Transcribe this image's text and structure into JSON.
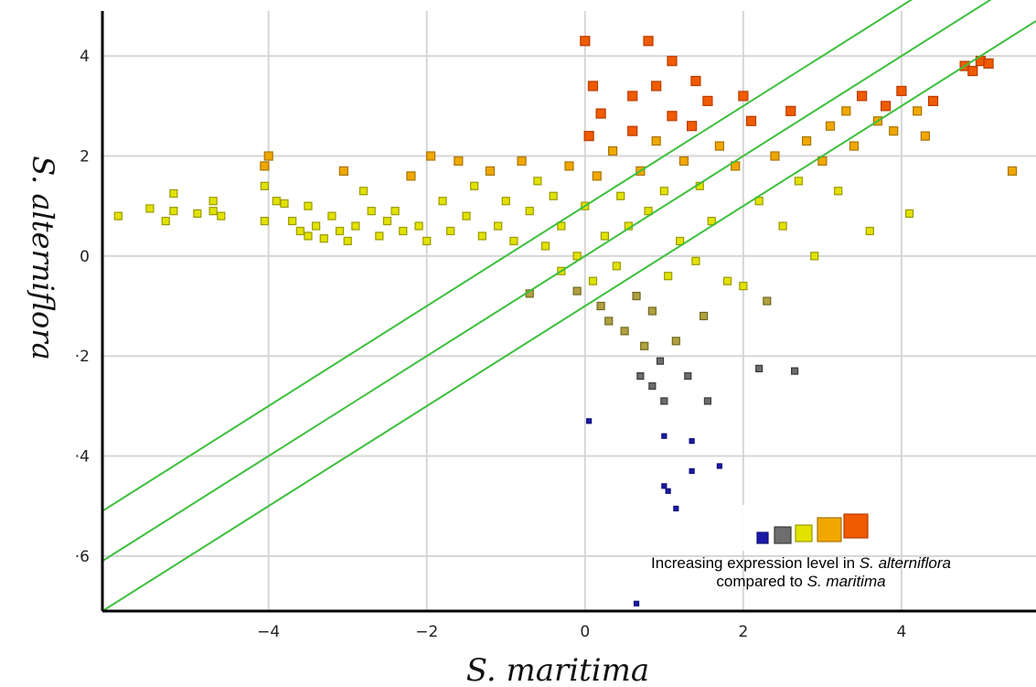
{
  "chart_data": {
    "type": "scatter",
    "title": "",
    "xlabel": "S. maritima",
    "ylabel": "S. alterniflora",
    "xlim": [
      -6.1,
      5.7
    ],
    "ylim": [
      -7.1,
      4.9
    ],
    "x_ticks": [
      -4,
      -2,
      0,
      2,
      4
    ],
    "y_ticks": [
      4,
      2,
      0,
      -2,
      -4,
      -6
    ],
    "x_tick_labels": [
      "−4",
      "−2",
      "0",
      "2",
      "4"
    ],
    "y_tick_labels": [
      "4",
      "2",
      "0",
      "·2",
      "·4",
      "·6"
    ],
    "grid": true,
    "reference_lines": [
      {
        "slope": 1,
        "intercept": 1
      },
      {
        "slope": 1,
        "intercept": 0
      },
      {
        "slope": 1,
        "intercept": -1
      }
    ],
    "line_color": "#3dbf3d",
    "color_scale": [
      "#1a1aa8",
      "#6d6d6d",
      "#e2e200",
      "#f0a800",
      "#f05a00"
    ],
    "legend": {
      "placement": "bottom-right",
      "line1_prefix": "Increasing expression level in ",
      "line1_italic": "S. alterniflora",
      "line2_prefix": "compared to ",
      "line2_italic": "S. maritima"
    },
    "points": [
      {
        "x": -5.9,
        "y": 0.8
      },
      {
        "x": -5.5,
        "y": 0.95
      },
      {
        "x": -5.3,
        "y": 0.7
      },
      {
        "x": -5.2,
        "y": 1.25
      },
      {
        "x": -5.2,
        "y": 0.9
      },
      {
        "x": -4.9,
        "y": 0.85
      },
      {
        "x": -4.7,
        "y": 1.1
      },
      {
        "x": -4.7,
        "y": 0.9
      },
      {
        "x": -4.6,
        "y": 0.8
      },
      {
        "x": -4.0,
        "y": 2.0
      },
      {
        "x": -4.05,
        "y": 1.8
      },
      {
        "x": -4.05,
        "y": 1.4
      },
      {
        "x": -4.05,
        "y": 0.7
      },
      {
        "x": -3.9,
        "y": 1.1
      },
      {
        "x": -3.8,
        "y": 1.05
      },
      {
        "x": -3.7,
        "y": 0.7
      },
      {
        "x": -3.6,
        "y": 0.5
      },
      {
        "x": -3.5,
        "y": 0.4
      },
      {
        "x": -3.5,
        "y": 1.0
      },
      {
        "x": -3.4,
        "y": 0.6
      },
      {
        "x": -3.3,
        "y": 0.35
      },
      {
        "x": -3.2,
        "y": 0.8
      },
      {
        "x": -3.1,
        "y": 0.5
      },
      {
        "x": -3.05,
        "y": 1.7
      },
      {
        "x": -3.0,
        "y": 0.3
      },
      {
        "x": -2.9,
        "y": 0.6
      },
      {
        "x": -2.8,
        "y": 1.3
      },
      {
        "x": -2.7,
        "y": 0.9
      },
      {
        "x": -2.6,
        "y": 0.4
      },
      {
        "x": -2.5,
        "y": 0.7
      },
      {
        "x": -2.4,
        "y": 0.9
      },
      {
        "x": -2.3,
        "y": 0.5
      },
      {
        "x": -2.2,
        "y": 1.6
      },
      {
        "x": -2.1,
        "y": 0.6
      },
      {
        "x": -2.0,
        "y": 0.3
      },
      {
        "x": -1.95,
        "y": 2.0
      },
      {
        "x": -1.8,
        "y": 1.1
      },
      {
        "x": -1.7,
        "y": 0.5
      },
      {
        "x": -1.6,
        "y": 1.9
      },
      {
        "x": -1.5,
        "y": 0.8
      },
      {
        "x": -1.4,
        "y": 1.4
      },
      {
        "x": -1.3,
        "y": 0.4
      },
      {
        "x": -1.2,
        "y": 1.7
      },
      {
        "x": -1.1,
        "y": 0.6
      },
      {
        "x": -1.0,
        "y": 1.1
      },
      {
        "x": -0.9,
        "y": 0.3
      },
      {
        "x": -0.8,
        "y": 1.9
      },
      {
        "x": -0.7,
        "y": 0.9
      },
      {
        "x": -0.6,
        "y": 1.5
      },
      {
        "x": -0.5,
        "y": 0.2
      },
      {
        "x": -0.4,
        "y": 1.2
      },
      {
        "x": -0.3,
        "y": 0.6
      },
      {
        "x": -0.2,
        "y": 1.8
      },
      {
        "x": -0.1,
        "y": 0.0
      },
      {
        "x": 0.0,
        "y": 1.0
      },
      {
        "x": -0.7,
        "y": -0.75
      },
      {
        "x": -0.3,
        "y": -0.3
      },
      {
        "x": -0.1,
        "y": -0.7
      },
      {
        "x": 0.05,
        "y": 2.4
      },
      {
        "x": 0.1,
        "y": -0.5
      },
      {
        "x": 0.15,
        "y": 1.6
      },
      {
        "x": 0.2,
        "y": -1.0
      },
      {
        "x": 0.25,
        "y": 0.4
      },
      {
        "x": 0.3,
        "y": -1.3
      },
      {
        "x": 0.35,
        "y": 2.1
      },
      {
        "x": 0.4,
        "y": -0.2
      },
      {
        "x": 0.45,
        "y": 1.2
      },
      {
        "x": 0.5,
        "y": -1.5
      },
      {
        "x": 0.55,
        "y": 0.6
      },
      {
        "x": 0.6,
        "y": 2.5
      },
      {
        "x": 0.65,
        "y": -0.8
      },
      {
        "x": 0.7,
        "y": 1.7
      },
      {
        "x": 0.75,
        "y": -1.8
      },
      {
        "x": 0.8,
        "y": 0.9
      },
      {
        "x": 0.85,
        "y": -1.1
      },
      {
        "x": 0.9,
        "y": 2.3
      },
      {
        "x": 0.95,
        "y": -2.1
      },
      {
        "x": 1.0,
        "y": 1.3
      },
      {
        "x": 1.05,
        "y": -0.4
      },
      {
        "x": 1.1,
        "y": 2.8
      },
      {
        "x": 1.15,
        "y": -1.7
      },
      {
        "x": 1.2,
        "y": 0.3
      },
      {
        "x": 1.25,
        "y": 1.9
      },
      {
        "x": 1.3,
        "y": -2.4
      },
      {
        "x": 1.35,
        "y": 2.6
      },
      {
        "x": 1.4,
        "y": -0.1
      },
      {
        "x": 1.45,
        "y": 1.4
      },
      {
        "x": 1.5,
        "y": -1.2
      },
      {
        "x": 1.55,
        "y": 3.1
      },
      {
        "x": 1.6,
        "y": 0.7
      },
      {
        "x": 1.7,
        "y": 2.2
      },
      {
        "x": 1.8,
        "y": -0.5
      },
      {
        "x": 1.9,
        "y": 1.8
      },
      {
        "x": 2.0,
        "y": -0.6
      },
      {
        "x": 2.1,
        "y": 2.7
      },
      {
        "x": 2.2,
        "y": 1.1
      },
      {
        "x": 2.3,
        "y": -0.9
      },
      {
        "x": 2.4,
        "y": 2.0
      },
      {
        "x": 2.5,
        "y": 0.6
      },
      {
        "x": 2.6,
        "y": 2.9
      },
      {
        "x": 2.7,
        "y": 1.5
      },
      {
        "x": 2.8,
        "y": 2.3
      },
      {
        "x": 2.9,
        "y": 0.0
      },
      {
        "x": 3.0,
        "y": 1.9
      },
      {
        "x": 3.1,
        "y": 2.6
      },
      {
        "x": 3.2,
        "y": 1.3
      },
      {
        "x": 3.3,
        "y": 2.9
      },
      {
        "x": 3.4,
        "y": 2.2
      },
      {
        "x": 3.5,
        "y": 3.2
      },
      {
        "x": 3.6,
        "y": 0.5
      },
      {
        "x": 3.7,
        "y": 2.7
      },
      {
        "x": 3.8,
        "y": 3.0
      },
      {
        "x": 3.9,
        "y": 2.5
      },
      {
        "x": 4.0,
        "y": 3.3
      },
      {
        "x": 4.1,
        "y": 0.85
      },
      {
        "x": 4.2,
        "y": 2.9
      },
      {
        "x": 4.3,
        "y": 2.4
      },
      {
        "x": 4.4,
        "y": 3.1
      },
      {
        "x": 4.8,
        "y": 3.8
      },
      {
        "x": 4.9,
        "y": 3.7
      },
      {
        "x": 5.0,
        "y": 3.9
      },
      {
        "x": 5.1,
        "y": 3.85
      },
      {
        "x": 5.4,
        "y": 1.7
      },
      {
        "x": 0.0,
        "y": 4.3
      },
      {
        "x": 0.8,
        "y": 4.3
      },
      {
        "x": 1.1,
        "y": 3.9
      },
      {
        "x": 0.1,
        "y": 3.4
      },
      {
        "x": 0.6,
        "y": 3.2
      },
      {
        "x": 0.9,
        "y": 3.4
      },
      {
        "x": 1.4,
        "y": 3.5
      },
      {
        "x": 2.0,
        "y": 3.2
      },
      {
        "x": 0.2,
        "y": 2.85
      },
      {
        "x": 0.7,
        "y": -2.4
      },
      {
        "x": 0.85,
        "y": -2.6
      },
      {
        "x": 1.0,
        "y": -2.9
      },
      {
        "x": 1.55,
        "y": -2.9
      },
      {
        "x": 2.2,
        "y": -2.25
      },
      {
        "x": 2.65,
        "y": -2.3
      },
      {
        "x": 0.05,
        "y": -3.3
      },
      {
        "x": 1.0,
        "y": -3.6
      },
      {
        "x": 1.35,
        "y": -3.7
      },
      {
        "x": 1.35,
        "y": -4.3
      },
      {
        "x": 1.7,
        "y": -4.2
      },
      {
        "x": 1.0,
        "y": -4.6
      },
      {
        "x": 1.05,
        "y": -4.7
      },
      {
        "x": 1.15,
        "y": -5.05
      },
      {
        "x": 0.65,
        "y": -6.95
      }
    ]
  }
}
